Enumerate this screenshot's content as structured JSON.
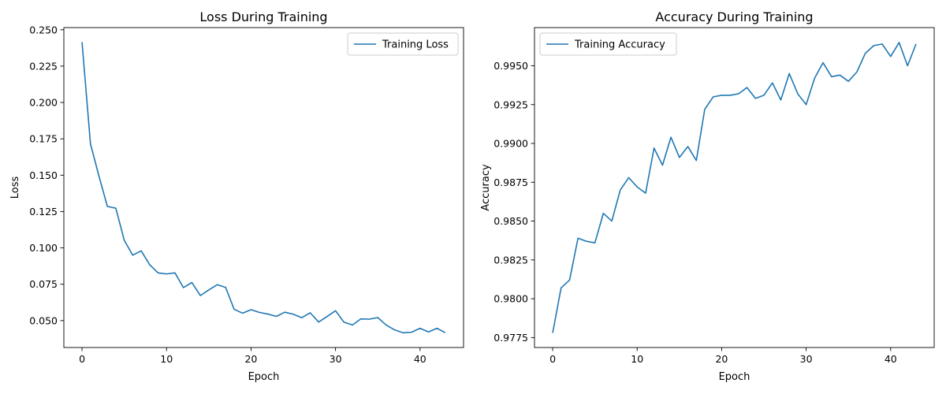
{
  "chart_data": [
    {
      "type": "line",
      "title": "Loss During Training",
      "xlabel": "Epoch",
      "ylabel": "Loss",
      "xlim": [
        -2.15,
        45.15
      ],
      "ylim": [
        0.0315,
        0.2515
      ],
      "xticks": [
        0,
        10,
        20,
        30,
        40
      ],
      "yticks": [
        0.05,
        0.075,
        0.1,
        0.125,
        0.15,
        0.175,
        0.2,
        0.225,
        0.25
      ],
      "ytick_labels": [
        "0.050",
        "0.075",
        "0.100",
        "0.125",
        "0.150",
        "0.175",
        "0.200",
        "0.225",
        "0.250"
      ],
      "legend": "upper right",
      "grid": false,
      "series": [
        {
          "name": "Training Loss",
          "color": "#1f77b4",
          "x": [
            0,
            1,
            2,
            3,
            4,
            5,
            6,
            7,
            8,
            9,
            10,
            11,
            12,
            13,
            14,
            15,
            16,
            17,
            18,
            19,
            20,
            21,
            22,
            23,
            24,
            25,
            26,
            27,
            28,
            29,
            30,
            31,
            32,
            33,
            34,
            35,
            36,
            37,
            38,
            39,
            40,
            41,
            42,
            43
          ],
          "values": [
            0.2415,
            0.1715,
            0.1495,
            0.1285,
            0.1273,
            0.1052,
            0.095,
            0.098,
            0.0885,
            0.0828,
            0.0821,
            0.0828,
            0.0727,
            0.0762,
            0.0672,
            0.0711,
            0.0747,
            0.0728,
            0.0578,
            0.0551,
            0.0575,
            0.0556,
            0.0545,
            0.0529,
            0.0558,
            0.0544,
            0.052,
            0.0554,
            0.049,
            0.0528,
            0.0568,
            0.0489,
            0.047,
            0.0512,
            0.051,
            0.0521,
            0.0469,
            0.0436,
            0.0416,
            0.042,
            0.0447,
            0.0422,
            0.0447,
            0.0417
          ]
        }
      ]
    },
    {
      "type": "line",
      "title": "Accuracy During Training",
      "xlabel": "Epoch",
      "ylabel": "Accuracy",
      "xlim": [
        -2.15,
        45.15
      ],
      "ylim": [
        0.97686,
        0.99746
      ],
      "xticks": [
        0,
        10,
        20,
        30,
        40
      ],
      "yticks": [
        0.9775,
        0.98,
        0.9825,
        0.985,
        0.9875,
        0.99,
        0.9925,
        0.995
      ],
      "ytick_labels": [
        "0.9775",
        "0.9800",
        "0.9825",
        "0.9850",
        "0.9875",
        "0.9900",
        "0.9925",
        "0.9950"
      ],
      "legend": "upper left",
      "grid": false,
      "series": [
        {
          "name": "Training Accuracy",
          "color": "#1f77b4",
          "x": [
            0,
            1,
            2,
            3,
            4,
            5,
            6,
            7,
            8,
            9,
            10,
            11,
            12,
            13,
            14,
            15,
            16,
            17,
            18,
            19,
            20,
            21,
            22,
            23,
            24,
            25,
            26,
            27,
            28,
            29,
            30,
            31,
            32,
            33,
            34,
            35,
            36,
            37,
            38,
            39,
            40,
            41,
            42,
            43
          ],
          "values": [
            0.9778,
            0.9807,
            0.9812,
            0.9839,
            0.9837,
            0.9836,
            0.9855,
            0.985,
            0.987,
            0.9878,
            0.9872,
            0.9868,
            0.9897,
            0.9886,
            0.9904,
            0.9891,
            0.9898,
            0.9889,
            0.9922,
            0.993,
            0.9931,
            0.9931,
            0.9932,
            0.9936,
            0.9929,
            0.9931,
            0.9939,
            0.9928,
            0.9945,
            0.9932,
            0.9925,
            0.9942,
            0.9952,
            0.9943,
            0.9944,
            0.994,
            0.9946,
            0.9958,
            0.9963,
            0.9964,
            0.9956,
            0.9965,
            0.995,
            0.9964
          ]
        }
      ]
    }
  ]
}
